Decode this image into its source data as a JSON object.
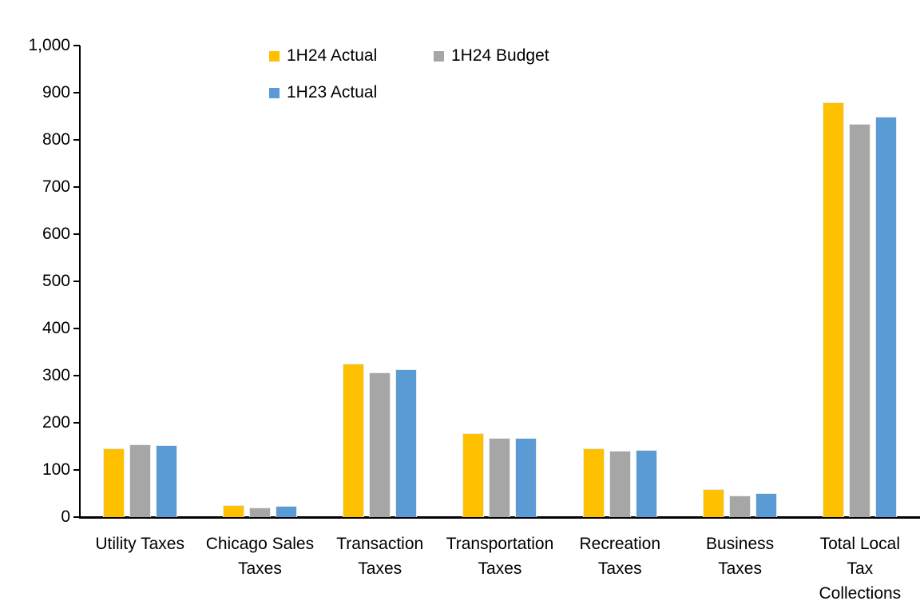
{
  "chart_data": {
    "type": "bar",
    "title": "",
    "xlabel": "",
    "ylabel": "",
    "grid": false,
    "legend_position": "top",
    "categories": [
      "Utility Taxes",
      "Chicago Sales\nTaxes",
      "Transaction\nTaxes",
      "Transportation\nTaxes",
      "Recreation\nTaxes",
      "Business\nTaxes",
      "Total Local\nTax\nCollections"
    ],
    "series": [
      {
        "name": "1H24 Actual",
        "color": "#FFC000",
        "values": [
          145,
          26,
          325,
          178,
          146,
          60,
          880
        ]
      },
      {
        "name": "1H24 Budget",
        "color": "#A6A6A6",
        "values": [
          155,
          21,
          306,
          167,
          140,
          45,
          834
        ]
      },
      {
        "name": "1H23 Actual",
        "color": "#5B9BD5",
        "values": [
          152,
          24,
          313,
          168,
          142,
          50,
          849
        ]
      }
    ],
    "y_axis": {
      "min": 0,
      "max": 1000,
      "tick_interval": 100,
      "tick_labels": [
        "0",
        "100",
        "200",
        "300",
        "400",
        "500",
        "600",
        "700",
        "800",
        "900",
        "1,000"
      ]
    },
    "legend_rows": [
      [
        {
          "series": 0,
          "x": 337
        },
        {
          "series": 1,
          "x": 543
        }
      ],
      [
        {
          "series": 2,
          "x": 337
        }
      ]
    ],
    "axis_color": "#000000",
    "text_color": "#000000"
  },
  "layout_note": "clustered column chart, no gridlines, legend top"
}
